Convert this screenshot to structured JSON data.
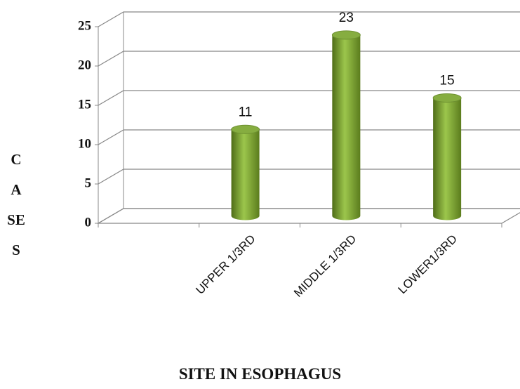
{
  "chart_data": {
    "type": "bar",
    "x_label": "SITE IN ESOPHAGUS",
    "y_label": "CASES",
    "categories": [
      null,
      "UPPER 1/3RD",
      "MIDDLE 1/3RD",
      "LOWER1/3RD"
    ],
    "values": [
      null,
      11,
      23,
      15
    ],
    "color": "#7fa33a",
    "ylim": [
      0,
      25
    ],
    "yticks": [
      0,
      5,
      10,
      15,
      20,
      25
    ],
    "grid": true
  }
}
